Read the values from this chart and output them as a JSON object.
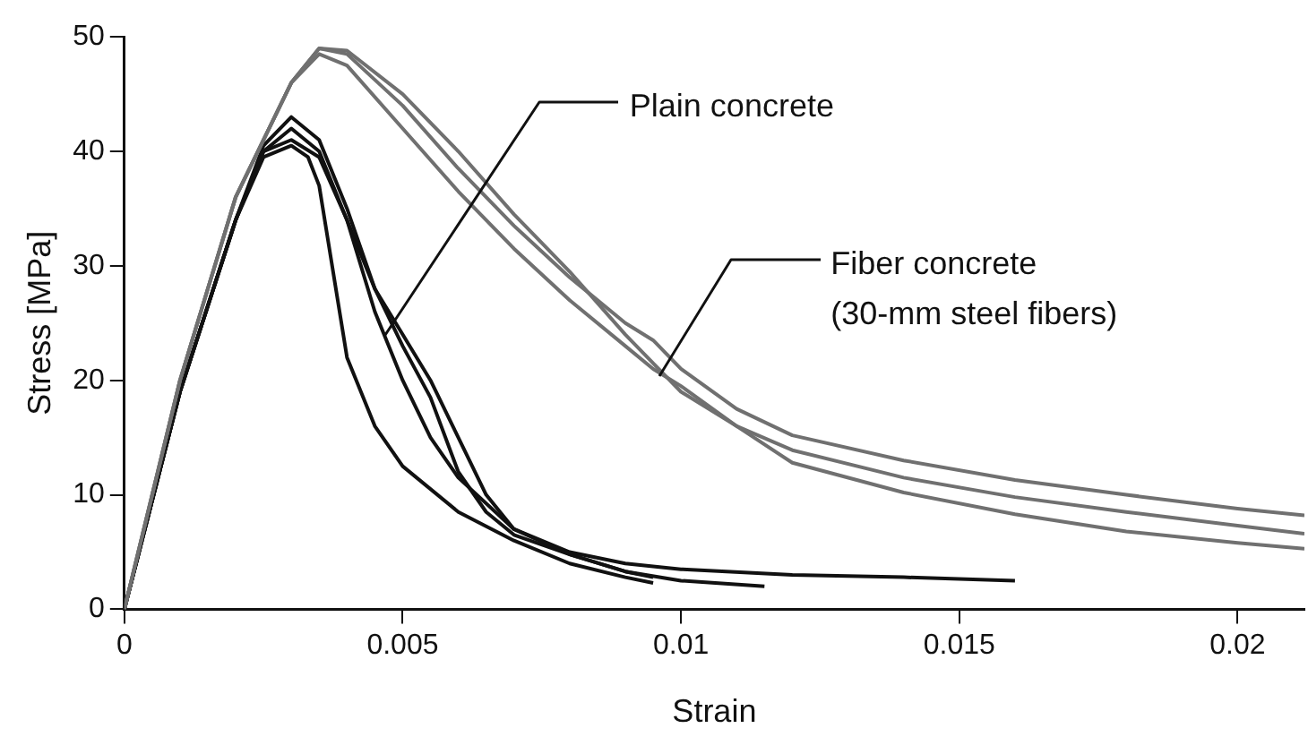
{
  "chart_data": {
    "type": "line",
    "xlabel": "Strain",
    "ylabel": "Stress [MPa]",
    "xlim": [
      0,
      0.0212
    ],
    "xticks": [
      0,
      0.005,
      0.01,
      0.015,
      0.02
    ],
    "ylim": [
      0,
      50
    ],
    "yticks": [
      0,
      10,
      20,
      30,
      40,
      50
    ],
    "grid": false,
    "legend": false,
    "marker": "none",
    "line_style": "solid",
    "series": [
      {
        "color": "#707070",
        "x": [
          0,
          0.001,
          0.002,
          0.003,
          0.0035,
          0.004,
          0.005,
          0.006,
          0.007,
          0.008,
          0.009,
          0.0095,
          0.01,
          0.011,
          0.012,
          0.014,
          0.016,
          0.018,
          0.02,
          0.0212
        ],
        "values": [
          0,
          20,
          36,
          46,
          49,
          48.5,
          44,
          38.5,
          33.5,
          29,
          25,
          23.5,
          21,
          17.5,
          15.2,
          13,
          11.3,
          10,
          8.8,
          8.2
        ]
      },
      {
        "color": "#707070",
        "x": [
          0,
          0.001,
          0.002,
          0.003,
          0.0035,
          0.004,
          0.005,
          0.006,
          0.007,
          0.008,
          0.009,
          0.0095,
          0.01,
          0.011,
          0.012,
          0.014,
          0.016,
          0.018,
          0.02,
          0.0212
        ],
        "values": [
          0,
          20,
          36,
          46,
          49,
          48.8,
          45,
          40,
          34.5,
          29.5,
          24,
          21.5,
          19,
          16,
          13.9,
          11.5,
          9.8,
          8.5,
          7.3,
          6.6
        ]
      },
      {
        "color": "#707070",
        "x": [
          0,
          0.001,
          0.002,
          0.003,
          0.0035,
          0.004,
          0.005,
          0.006,
          0.007,
          0.008,
          0.009,
          0.0095,
          0.01,
          0.011,
          0.012,
          0.014,
          0.016,
          0.018,
          0.02,
          0.0212
        ],
        "values": [
          0,
          20,
          36,
          46,
          48.5,
          47.5,
          42,
          36.5,
          31.5,
          27,
          23,
          21,
          19.5,
          16,
          12.8,
          10.2,
          8.3,
          6.8,
          5.8,
          5.3
        ]
      },
      {
        "color": "#111111",
        "x": [
          0,
          0.001,
          0.002,
          0.0025,
          0.003,
          0.0033,
          0.0035,
          0.004,
          0.0045,
          0.005,
          0.006,
          0.007,
          0.008,
          0.009,
          0.0095
        ],
        "values": [
          0,
          19,
          34,
          39.5,
          40.5,
          39.5,
          37,
          22,
          16,
          12.5,
          8.5,
          6,
          4,
          2.8,
          2.3
        ]
      },
      {
        "color": "#111111",
        "x": [
          0,
          0.001,
          0.002,
          0.0025,
          0.003,
          0.0035,
          0.004,
          0.0045,
          0.005,
          0.0055,
          0.006,
          0.007,
          0.008,
          0.009,
          0.01,
          0.0115
        ],
        "values": [
          0,
          19,
          34,
          40,
          42,
          40,
          34,
          26,
          20,
          15,
          11.5,
          7,
          4.8,
          3.3,
          2.5,
          2
        ]
      },
      {
        "color": "#111111",
        "x": [
          0,
          0.001,
          0.002,
          0.0025,
          0.003,
          0.0035,
          0.004,
          0.0045,
          0.005,
          0.0055,
          0.006,
          0.0065,
          0.007,
          0.008,
          0.009,
          0.0095
        ],
        "values": [
          0,
          19,
          34,
          40.5,
          43,
          41,
          35,
          28,
          23,
          18.5,
          12,
          8.5,
          6.5,
          4.8,
          3.3,
          2.8
        ]
      },
      {
        "color": "#111111",
        "x": [
          0,
          0.001,
          0.002,
          0.0025,
          0.003,
          0.0035,
          0.004,
          0.0045,
          0.005,
          0.0055,
          0.006,
          0.0065,
          0.007,
          0.008,
          0.009,
          0.01,
          0.012,
          0.014,
          0.016
        ],
        "values": [
          0,
          19,
          34,
          40,
          41,
          39.5,
          34,
          28,
          24,
          20,
          15,
          10,
          7,
          5,
          4,
          3.5,
          3,
          2.8,
          2.5
        ]
      }
    ],
    "annotations": [
      {
        "text": "Plain concrete",
        "x": 0.0047,
        "y": 24
      },
      {
        "text": "Fiber concrete\n(30-mm steel fibers)",
        "x": 0.0096,
        "y": 20.4
      }
    ]
  }
}
